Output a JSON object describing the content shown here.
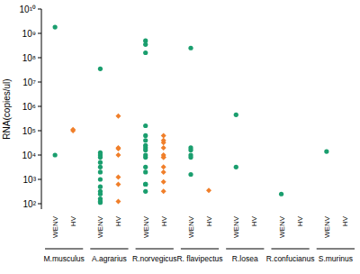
{
  "chart_data": {
    "type": "strip",
    "y_label": "RNA(copies/ul)",
    "log": "y",
    "ylim": [
      60,
      10000000000
    ],
    "yticks": [
      {
        "value": 100,
        "label": "10²"
      },
      {
        "value": 1000,
        "label": "10³"
      },
      {
        "value": 10000,
        "label": "10⁴"
      },
      {
        "value": 100000,
        "label": "10⁵"
      },
      {
        "value": 1000000,
        "label": "10⁶"
      },
      {
        "value": 10000000,
        "label": "10⁷"
      },
      {
        "value": 100000000,
        "label": "10⁸"
      },
      {
        "value": 1000000000,
        "label": "10⁹"
      },
      {
        "value": 10000000000,
        "label": "10¹⁰"
      }
    ],
    "groups": [
      "M.musculus",
      "A.agrarius",
      "R.norvegicus",
      "R. flavipectus",
      "R.losea",
      "R.confucianus",
      "S.murinus"
    ],
    "series": [
      {
        "name": "WENV",
        "color": "#1a9e6e",
        "marker": "circle",
        "values": [
          [
            1800000000,
            10000
          ],
          [
            35000000,
            12500,
            10000,
            8000,
            5000,
            3200,
            2000,
            1000,
            500,
            320,
            250,
            160,
            125,
            112
          ],
          [
            500000000,
            350000000,
            160000000,
            160000,
            63000,
            40000,
            25000,
            20000,
            16000,
            10000,
            8000,
            3200,
            2000,
            630,
            630,
            320
          ],
          [
            250000000,
            20000,
            16000,
            10000,
            8000,
            1600
          ],
          [
            450000,
            3200
          ],
          [
            250
          ],
          [
            14000
          ]
        ]
      },
      {
        "name": "HV",
        "color": "#f07f2a",
        "marker": "diamond",
        "values": [
          [
            100000,
            112000
          ],
          [
            400000,
            20000,
            18000,
            10000,
            1250,
            630,
            125
          ],
          [
            63000,
            40000,
            32000,
            20000,
            10000,
            8000,
            8000,
            3200,
            2000,
            800,
            320
          ],
          [
            350
          ],
          [],
          [],
          []
        ]
      }
    ]
  }
}
